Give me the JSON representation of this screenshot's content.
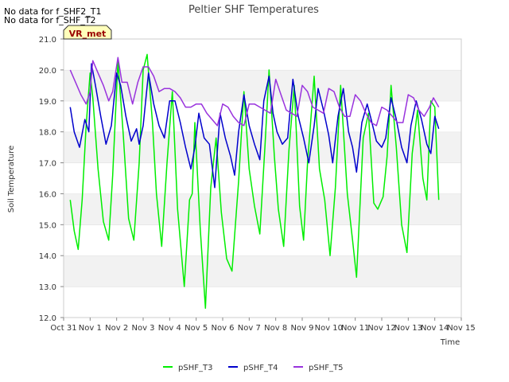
{
  "notes": [
    "No data for f_SHF2_T1",
    "No data for f_SHF_T2"
  ],
  "badge": "VR_met",
  "chart_data": {
    "type": "line",
    "title": "Peltier SHF Temperatures",
    "xlabel": "Time",
    "ylabel": "Soil Temperature",
    "ylim": [
      12.0,
      21.0
    ],
    "yticks": [
      12.0,
      13.0,
      14.0,
      15.0,
      16.0,
      17.0,
      18.0,
      19.0,
      20.0,
      21.0
    ],
    "ytick_labels": [
      "12.0",
      "13.0",
      "14.0",
      "15.0",
      "16.0",
      "17.0",
      "18.0",
      "19.0",
      "20.0",
      "21.0"
    ],
    "xlim": [
      0,
      15
    ],
    "xticks": [
      0,
      1,
      2,
      3,
      4,
      5,
      6,
      7,
      8,
      9,
      10,
      11,
      12,
      13,
      14,
      15
    ],
    "xtick_labels": [
      "Oct 31",
      "Nov 1",
      "Nov 2",
      "Nov 3",
      "Nov 4",
      "Nov 5",
      "Nov 6",
      "Nov 7",
      "Nov 8",
      "Nov 9",
      "Nov 10",
      "Nov 11",
      "Nov 12",
      "Nov 13",
      "Nov 14",
      "Nov 15"
    ],
    "grid": "horizontal alternating bands",
    "legend_position": "bottom-center",
    "series": [
      {
        "name": "pSHF_T3",
        "color": "#00ee00",
        "x": [
          0.25,
          0.4,
          0.55,
          0.7,
          0.85,
          1.0,
          1.1,
          1.3,
          1.5,
          1.7,
          1.85,
          2.05,
          2.25,
          2.45,
          2.65,
          2.85,
          3.0,
          3.15,
          3.35,
          3.5,
          3.7,
          3.9,
          4.1,
          4.3,
          4.55,
          4.75,
          4.85,
          4.95,
          5.15,
          5.35,
          5.55,
          5.75,
          5.95,
          6.15,
          6.35,
          6.6,
          6.8,
          7.0,
          7.2,
          7.4,
          7.6,
          7.75,
          7.95,
          8.1,
          8.3,
          8.5,
          8.7,
          8.9,
          9.05,
          9.2,
          9.45,
          9.65,
          9.85,
          10.05,
          10.25,
          10.45,
          10.7,
          10.9,
          11.05,
          11.3,
          11.5,
          11.7,
          11.85,
          12.05,
          12.2,
          12.35,
          12.55,
          12.75,
          12.95,
          13.15,
          13.35,
          13.55,
          13.7,
          13.85,
          14.0,
          14.15
        ],
        "values": [
          15.8,
          14.8,
          14.2,
          15.8,
          18.2,
          19.9,
          19.1,
          16.8,
          15.1,
          14.5,
          16.6,
          20.3,
          17.9,
          15.2,
          14.5,
          17.0,
          20.0,
          20.5,
          18.3,
          16.0,
          14.3,
          17.0,
          19.3,
          15.5,
          13.0,
          15.8,
          16.0,
          18.3,
          14.9,
          12.3,
          16.2,
          17.8,
          15.4,
          13.9,
          13.5,
          16.4,
          19.3,
          16.8,
          15.6,
          14.7,
          17.6,
          20.0,
          17.2,
          15.5,
          14.3,
          17.4,
          19.5,
          15.6,
          14.5,
          17.0,
          19.8,
          16.8,
          15.8,
          14.0,
          16.2,
          19.5,
          16.0,
          14.5,
          13.3,
          17.8,
          18.6,
          15.7,
          15.5,
          15.9,
          17.2,
          19.5,
          17.5,
          15.0,
          14.1,
          17.3,
          18.7,
          16.5,
          15.8,
          19.0,
          18.8,
          15.8
        ]
      },
      {
        "name": "pSHF_T4",
        "color": "#0000cc",
        "x": [
          0.25,
          0.4,
          0.6,
          0.8,
          0.95,
          1.05,
          1.2,
          1.4,
          1.6,
          1.8,
          2.0,
          2.15,
          2.35,
          2.55,
          2.75,
          2.85,
          3.0,
          3.2,
          3.4,
          3.6,
          3.8,
          4.0,
          4.2,
          4.4,
          4.6,
          4.8,
          4.95,
          5.1,
          5.3,
          5.5,
          5.7,
          5.9,
          6.1,
          6.3,
          6.45,
          6.6,
          6.8,
          7.0,
          7.2,
          7.4,
          7.55,
          7.75,
          7.9,
          8.05,
          8.25,
          8.45,
          8.65,
          8.85,
          9.05,
          9.25,
          9.45,
          9.6,
          9.8,
          10.0,
          10.15,
          10.35,
          10.55,
          10.75,
          10.9,
          11.05,
          11.25,
          11.45,
          11.6,
          11.8,
          12.0,
          12.15,
          12.35,
          12.55,
          12.75,
          12.95,
          13.1,
          13.3,
          13.5,
          13.7,
          13.85,
          14.0,
          14.15
        ],
        "values": [
          18.8,
          18.0,
          17.5,
          18.4,
          18.0,
          20.2,
          19.5,
          18.5,
          17.6,
          18.2,
          19.9,
          19.5,
          18.5,
          17.7,
          18.1,
          17.6,
          18.2,
          19.9,
          18.9,
          18.2,
          17.8,
          19.0,
          19.0,
          18.3,
          17.5,
          16.8,
          17.5,
          18.6,
          17.8,
          17.6,
          16.2,
          18.6,
          17.8,
          17.2,
          16.6,
          18.0,
          19.2,
          18.2,
          17.6,
          17.1,
          19.0,
          19.8,
          18.6,
          18.0,
          17.6,
          17.8,
          19.7,
          18.5,
          17.8,
          17.0,
          18.2,
          19.4,
          18.7,
          17.9,
          17.0,
          18.5,
          19.4,
          18.0,
          17.5,
          16.7,
          18.3,
          18.9,
          18.4,
          17.7,
          17.5,
          17.8,
          19.1,
          18.4,
          17.5,
          17.0,
          18.2,
          19.0,
          18.4,
          17.6,
          17.3,
          18.5,
          18.1
        ]
      },
      {
        "name": "pSHF_T5",
        "color": "#9933dd",
        "x": [
          0.25,
          0.45,
          0.65,
          0.85,
          1.0,
          1.1,
          1.3,
          1.5,
          1.7,
          1.85,
          2.05,
          2.2,
          2.4,
          2.6,
          2.8,
          3.0,
          3.2,
          3.4,
          3.6,
          3.8,
          4.0,
          4.2,
          4.4,
          4.6,
          4.8,
          5.0,
          5.2,
          5.4,
          5.6,
          5.8,
          6.0,
          6.2,
          6.4,
          6.6,
          6.8,
          7.0,
          7.2,
          7.4,
          7.6,
          7.8,
          8.0,
          8.2,
          8.4,
          8.6,
          8.8,
          9.0,
          9.2,
          9.4,
          9.6,
          9.8,
          10.0,
          10.2,
          10.4,
          10.6,
          10.8,
          11.0,
          11.2,
          11.4,
          11.6,
          11.8,
          12.0,
          12.2,
          12.4,
          12.6,
          12.8,
          13.0,
          13.2,
          13.4,
          13.6,
          13.8,
          13.95,
          14.15
        ],
        "values": [
          20.0,
          19.6,
          19.2,
          18.9,
          19.3,
          20.3,
          19.9,
          19.5,
          19.0,
          19.3,
          20.4,
          19.6,
          19.6,
          18.9,
          19.6,
          20.1,
          20.1,
          19.8,
          19.3,
          19.4,
          19.4,
          19.3,
          19.1,
          18.8,
          18.8,
          18.9,
          18.9,
          18.6,
          18.4,
          18.2,
          18.9,
          18.8,
          18.5,
          18.3,
          18.2,
          18.9,
          18.9,
          18.8,
          18.7,
          18.6,
          19.7,
          19.2,
          18.7,
          18.6,
          18.5,
          19.5,
          19.3,
          18.8,
          18.7,
          18.6,
          19.4,
          19.3,
          18.8,
          18.5,
          18.5,
          19.2,
          19.0,
          18.6,
          18.3,
          18.2,
          18.8,
          18.7,
          18.5,
          18.3,
          18.3,
          19.2,
          19.1,
          18.7,
          18.5,
          18.8,
          19.1,
          18.8
        ]
      }
    ]
  }
}
